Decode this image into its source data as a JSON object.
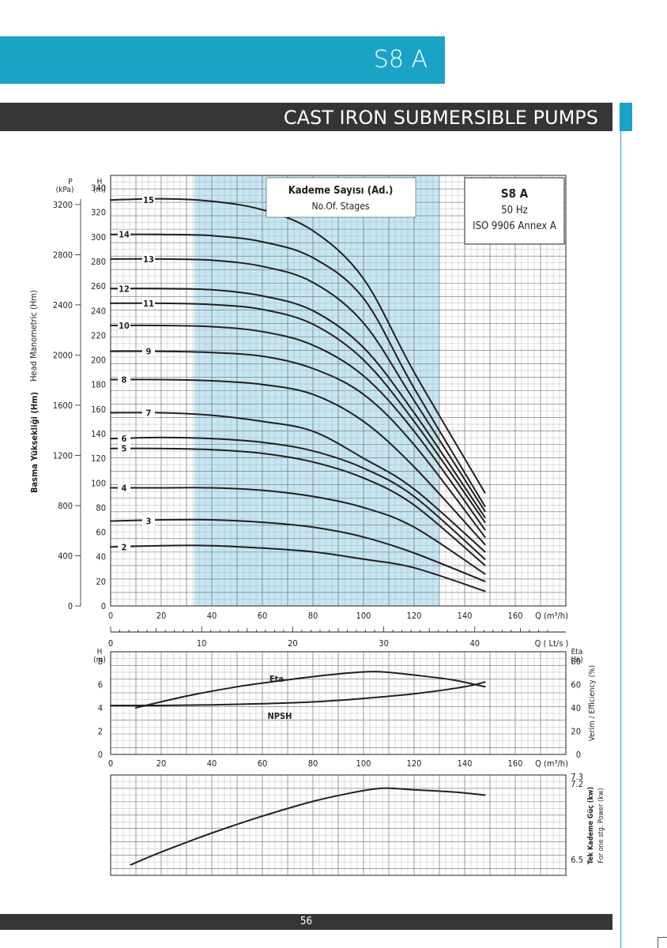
{
  "header": {
    "model": "S8 A",
    "subtitle": "CAST IRON SUBMERSIBLE PUMPS"
  },
  "footer": {
    "page": "56"
  },
  "colors": {
    "accent": "#1ba3c6",
    "dark_bar": "#373435",
    "curve": "#231f20",
    "band": "#c5e6f3"
  },
  "chart_data": [
    {
      "type": "line",
      "name": "head-curves",
      "legend_box": {
        "title": "Kademe Sayısı (Ad.)",
        "subtitle": "No.Of. Stages"
      },
      "info_box": {
        "model": "S8 A",
        "freq": "50 Hz",
        "standard": "ISO 9906 Annex A"
      },
      "y_left_unit": "P\n(kPa)",
      "y_left_label": "Basma Yüksekliği (Hm)",
      "y_left_label2": "Head Manometric (Hm)",
      "y_unit": "H\n(m)",
      "x_unit": "Q (m³/h)",
      "x2_unit": "Q ( Lt/s )",
      "xlim": [
        0,
        180
      ],
      "ylim": [
        0,
        350
      ],
      "x_ticks": [
        0,
        20,
        40,
        60,
        80,
        100,
        120,
        140,
        160
      ],
      "x2_ticks": [
        0,
        10,
        20,
        30,
        40
      ],
      "y_ticks": [
        0,
        20,
        40,
        60,
        80,
        100,
        120,
        140,
        160,
        180,
        200,
        220,
        240,
        260,
        280,
        300,
        320,
        340
      ],
      "p_ticks": [
        0,
        400,
        800,
        1200,
        1600,
        2000,
        2400,
        2800,
        3200
      ],
      "band": [
        33,
        130
      ],
      "series": [
        {
          "name": "2",
          "points": [
            [
              0,
              48
            ],
            [
              20,
              49
            ],
            [
              40,
              49
            ],
            [
              60,
              47
            ],
            [
              80,
              44
            ],
            [
              100,
              38
            ],
            [
              120,
              31
            ],
            [
              148,
              12
            ]
          ]
        },
        {
          "name": "3",
          "points": [
            [
              0,
              69
            ],
            [
              20,
              70
            ],
            [
              40,
              70
            ],
            [
              60,
              68
            ],
            [
              80,
              64
            ],
            [
              100,
              56
            ],
            [
              120,
              43
            ],
            [
              148,
              20
            ]
          ]
        },
        {
          "name": "4",
          "points": [
            [
              0,
              96
            ],
            [
              20,
              96
            ],
            [
              40,
              96
            ],
            [
              60,
              94
            ],
            [
              80,
              89
            ],
            [
              100,
              80
            ],
            [
              120,
              64
            ],
            [
              148,
              26
            ]
          ]
        },
        {
          "name": "5",
          "points": [
            [
              0,
              128
            ],
            [
              20,
              128
            ],
            [
              40,
              127
            ],
            [
              60,
              124
            ],
            [
              80,
              117
            ],
            [
              100,
              104
            ],
            [
              120,
              82
            ],
            [
              148,
              33
            ]
          ]
        },
        {
          "name": "6",
          "points": [
            [
              0,
              136
            ],
            [
              20,
              137
            ],
            [
              40,
              136
            ],
            [
              60,
              133
            ],
            [
              80,
              126
            ],
            [
              100,
              112
            ],
            [
              120,
              89
            ],
            [
              148,
              38
            ]
          ]
        },
        {
          "name": "7",
          "points": [
            [
              0,
              157
            ],
            [
              20,
              157
            ],
            [
              40,
              155
            ],
            [
              60,
              150
            ],
            [
              80,
              142
            ],
            [
              100,
              120
            ],
            [
              120,
              95
            ],
            [
              148,
              44
            ]
          ]
        },
        {
          "name": "8",
          "points": [
            [
              0,
              184
            ],
            [
              20,
              184
            ],
            [
              40,
              183
            ],
            [
              60,
              180
            ],
            [
              80,
              172
            ],
            [
              100,
              150
            ],
            [
              120,
              113
            ],
            [
              148,
              50
            ]
          ]
        },
        {
          "name": "9",
          "points": [
            [
              0,
              207
            ],
            [
              20,
              207
            ],
            [
              40,
              206
            ],
            [
              60,
              203
            ],
            [
              80,
              193
            ],
            [
              100,
              172
            ],
            [
              120,
              131
            ],
            [
              148,
              56
            ]
          ]
        },
        {
          "name": "10",
          "points": [
            [
              0,
              228
            ],
            [
              20,
              228
            ],
            [
              40,
              227
            ],
            [
              60,
              223
            ],
            [
              80,
              212
            ],
            [
              100,
              187
            ],
            [
              120,
              142
            ],
            [
              148,
              62
            ]
          ]
        },
        {
          "name": "11",
          "points": [
            [
              0,
              246
            ],
            [
              20,
              246
            ],
            [
              40,
              245
            ],
            [
              60,
              241
            ],
            [
              80,
              229
            ],
            [
              100,
              200
            ],
            [
              120,
              150
            ],
            [
              148,
              68
            ]
          ]
        },
        {
          "name": "12",
          "points": [
            [
              0,
              258
            ],
            [
              20,
              258
            ],
            [
              40,
              257
            ],
            [
              60,
              252
            ],
            [
              80,
              240
            ],
            [
              100,
              210
            ],
            [
              120,
              157
            ],
            [
              148,
              72
            ]
          ]
        },
        {
          "name": "13",
          "points": [
            [
              0,
              282
            ],
            [
              20,
              282
            ],
            [
              40,
              281
            ],
            [
              60,
              276
            ],
            [
              80,
              263
            ],
            [
              100,
              230
            ],
            [
              120,
              167
            ],
            [
              148,
              77
            ]
          ]
        },
        {
          "name": "14",
          "points": [
            [
              0,
              302
            ],
            [
              20,
              302
            ],
            [
              40,
              301
            ],
            [
              60,
              296
            ],
            [
              80,
              283
            ],
            [
              100,
              250
            ],
            [
              120,
              177
            ],
            [
              148,
              81
            ]
          ]
        },
        {
          "name": "15",
          "points": [
            [
              0,
              330
            ],
            [
              20,
              331
            ],
            [
              40,
              329
            ],
            [
              60,
              322
            ],
            [
              80,
              305
            ],
            [
              100,
              266
            ],
            [
              120,
              190
            ],
            [
              148,
              92
            ]
          ]
        }
      ]
    },
    {
      "type": "line",
      "name": "efficiency-npsh",
      "y_unit": "H\n(m)",
      "y2_unit": "Eta\n(%)",
      "y2_label": "Verim / Efficiency (%)",
      "x_unit": "Q (m³/h)",
      "xlim": [
        0,
        180
      ],
      "ylim": [
        0,
        8.8
      ],
      "y_ticks": [
        0,
        2,
        4,
        6,
        8
      ],
      "y2_ticks": [
        0,
        20,
        40,
        60,
        80
      ],
      "series": [
        {
          "name": "Eta",
          "axis": "right",
          "points": [
            [
              10,
              40
            ],
            [
              30,
              50
            ],
            [
              50,
              58
            ],
            [
              70,
              64
            ],
            [
              90,
              69
            ],
            [
              105,
              71
            ],
            [
              120,
              68
            ],
            [
              135,
              64
            ],
            [
              148,
              58
            ]
          ]
        },
        {
          "name": "NPSH",
          "axis": "left",
          "points": [
            [
              0,
              4.2
            ],
            [
              20,
              4.2
            ],
            [
              40,
              4.25
            ],
            [
              60,
              4.35
            ],
            [
              80,
              4.5
            ],
            [
              100,
              4.8
            ],
            [
              120,
              5.2
            ],
            [
              140,
              5.8
            ],
            [
              148,
              6.2
            ]
          ]
        }
      ]
    },
    {
      "type": "line",
      "name": "power",
      "y2_label": "Tek Kademe Güç (kw)",
      "y2_label2": "For one stg. Power (kw)",
      "xlim": [
        0,
        180
      ],
      "ylim": [
        6.4,
        7.35
      ],
      "y2_ticks": [
        "6.5",
        "7.2",
        "7.3"
      ],
      "series": [
        {
          "name": "power",
          "points": [
            [
              8,
              6.5
            ],
            [
              20,
              6.62
            ],
            [
              40,
              6.8
            ],
            [
              60,
              6.96
            ],
            [
              80,
              7.1
            ],
            [
              95,
              7.18
            ],
            [
              105,
              7.22
            ],
            [
              110,
              7.225
            ],
            [
              120,
              7.21
            ],
            [
              135,
              7.19
            ],
            [
              148,
              7.16
            ]
          ]
        }
      ]
    }
  ]
}
